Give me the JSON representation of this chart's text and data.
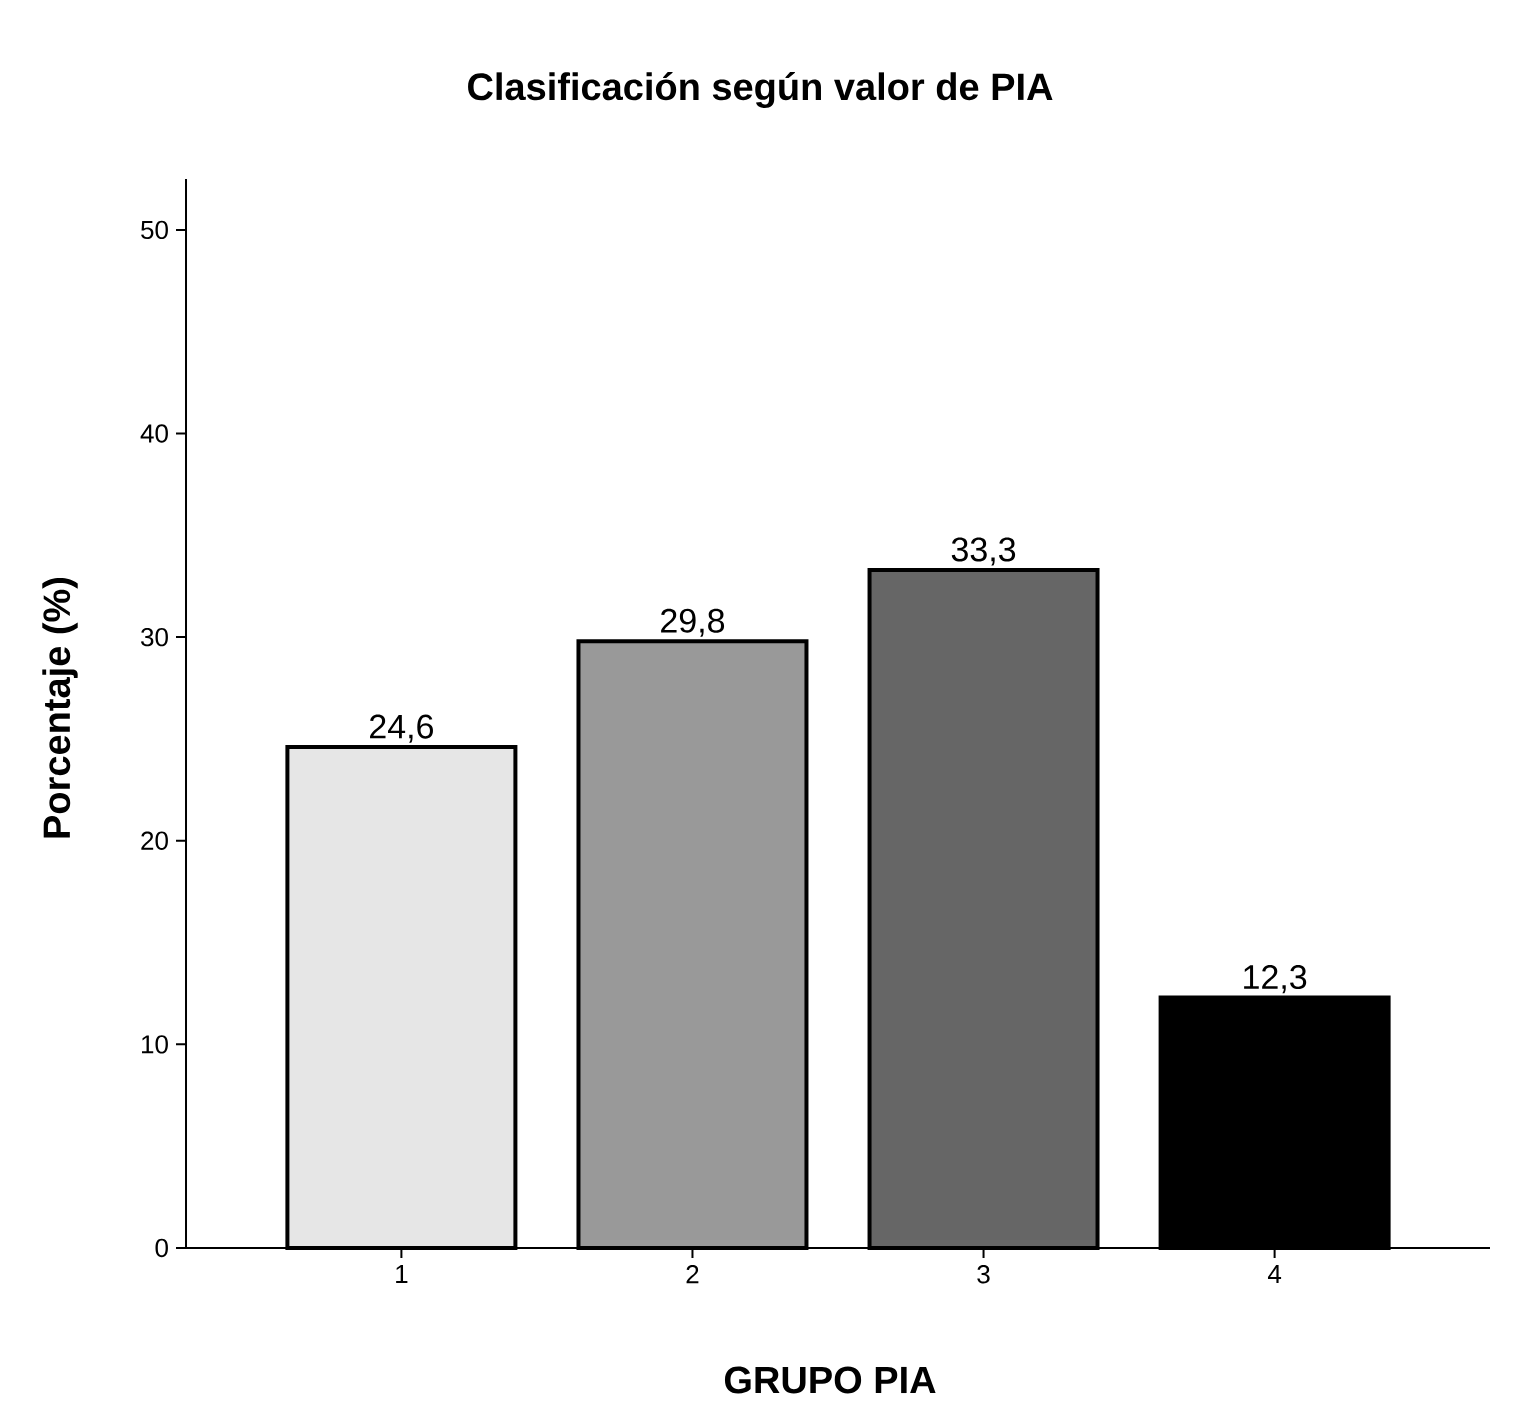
{
  "chart_data": {
    "type": "bar",
    "title": "Clasificación según valor de PIA",
    "xlabel": "GRUPO PIA",
    "ylabel": "Porcentaje (%)",
    "categories": [
      "1",
      "2",
      "3",
      "4"
    ],
    "values": [
      24.6,
      29.8,
      33.3,
      12.3
    ],
    "colors": [
      "#e6e6e6",
      "#999999",
      "#666666",
      "#000000"
    ],
    "value_labels": [
      "24,6",
      "29,8",
      "33,3",
      "12,3"
    ],
    "ylim": [
      0,
      52.5
    ],
    "yticks": [
      0,
      10,
      20,
      30,
      40,
      50
    ],
    "grid": false
  }
}
